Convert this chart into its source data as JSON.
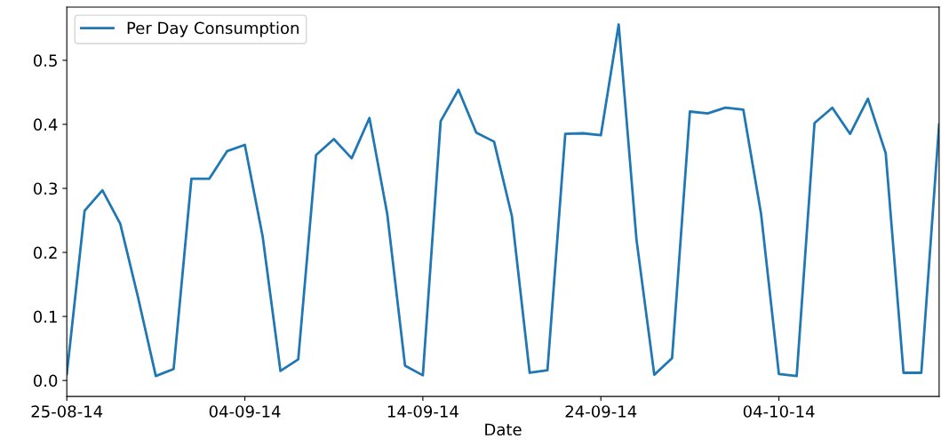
{
  "chart_data": {
    "type": "line",
    "xlabel": "Date",
    "legend": "top left",
    "grid": false,
    "x": [
      "2014-08-25",
      "2014-08-26",
      "2014-08-27",
      "2014-08-28",
      "2014-08-29",
      "2014-08-30",
      "2014-08-31",
      "2014-09-01",
      "2014-09-02",
      "2014-09-03",
      "2014-09-04",
      "2014-09-05",
      "2014-09-06",
      "2014-09-07",
      "2014-09-08",
      "2014-09-09",
      "2014-09-10",
      "2014-09-11",
      "2014-09-12",
      "2014-09-13",
      "2014-09-14",
      "2014-09-15",
      "2014-09-16",
      "2014-09-17",
      "2014-09-18",
      "2014-09-19",
      "2014-09-20",
      "2014-09-21",
      "2014-09-22",
      "2014-09-23",
      "2014-09-24",
      "2014-09-25",
      "2014-09-26",
      "2014-09-27",
      "2014-09-28",
      "2014-09-29",
      "2014-09-30",
      "2014-10-01",
      "2014-10-02",
      "2014-10-03",
      "2014-10-04",
      "2014-10-05",
      "2014-10-06",
      "2014-10-07",
      "2014-10-08",
      "2014-10-09",
      "2014-10-10",
      "2014-10-11",
      "2014-10-12",
      "2014-10-13"
    ],
    "series": [
      {
        "name": "Per Day Consumption",
        "color": "#1f77b4",
        "values": [
          0.01,
          0.265,
          0.297,
          0.245,
          0.13,
          0.007,
          0.018,
          0.315,
          0.315,
          0.358,
          0.368,
          0.225,
          0.015,
          0.033,
          0.352,
          0.377,
          0.347,
          0.41,
          0.26,
          0.023,
          0.008,
          0.405,
          0.454,
          0.387,
          0.373,
          0.257,
          0.012,
          0.016,
          0.385,
          0.386,
          0.383,
          0.556,
          0.22,
          0.009,
          0.035,
          0.42,
          0.417,
          0.426,
          0.423,
          0.26,
          0.01,
          0.007,
          0.402,
          0.426,
          0.385,
          0.44,
          0.355,
          0.012,
          0.012,
          0.4
        ]
      }
    ],
    "xlim": [
      "2014-08-25",
      "2014-10-13"
    ],
    "xticks": [
      {
        "value": "2014-08-25",
        "label": "25-08-14"
      },
      {
        "value": "2014-09-04",
        "label": "04-09-14"
      },
      {
        "value": "2014-09-14",
        "label": "14-09-14"
      },
      {
        "value": "2014-09-24",
        "label": "24-09-14"
      },
      {
        "value": "2014-10-04",
        "label": "04-10-14"
      }
    ],
    "ylim": [
      -0.025,
      0.583
    ],
    "yticks": [
      {
        "value": 0.0,
        "label": "0.0"
      },
      {
        "value": 0.1,
        "label": "0.1"
      },
      {
        "value": 0.2,
        "label": "0.2"
      },
      {
        "value": 0.3,
        "label": "0.3"
      },
      {
        "value": 0.4,
        "label": "0.4"
      },
      {
        "value": 0.5,
        "label": "0.5"
      }
    ]
  }
}
